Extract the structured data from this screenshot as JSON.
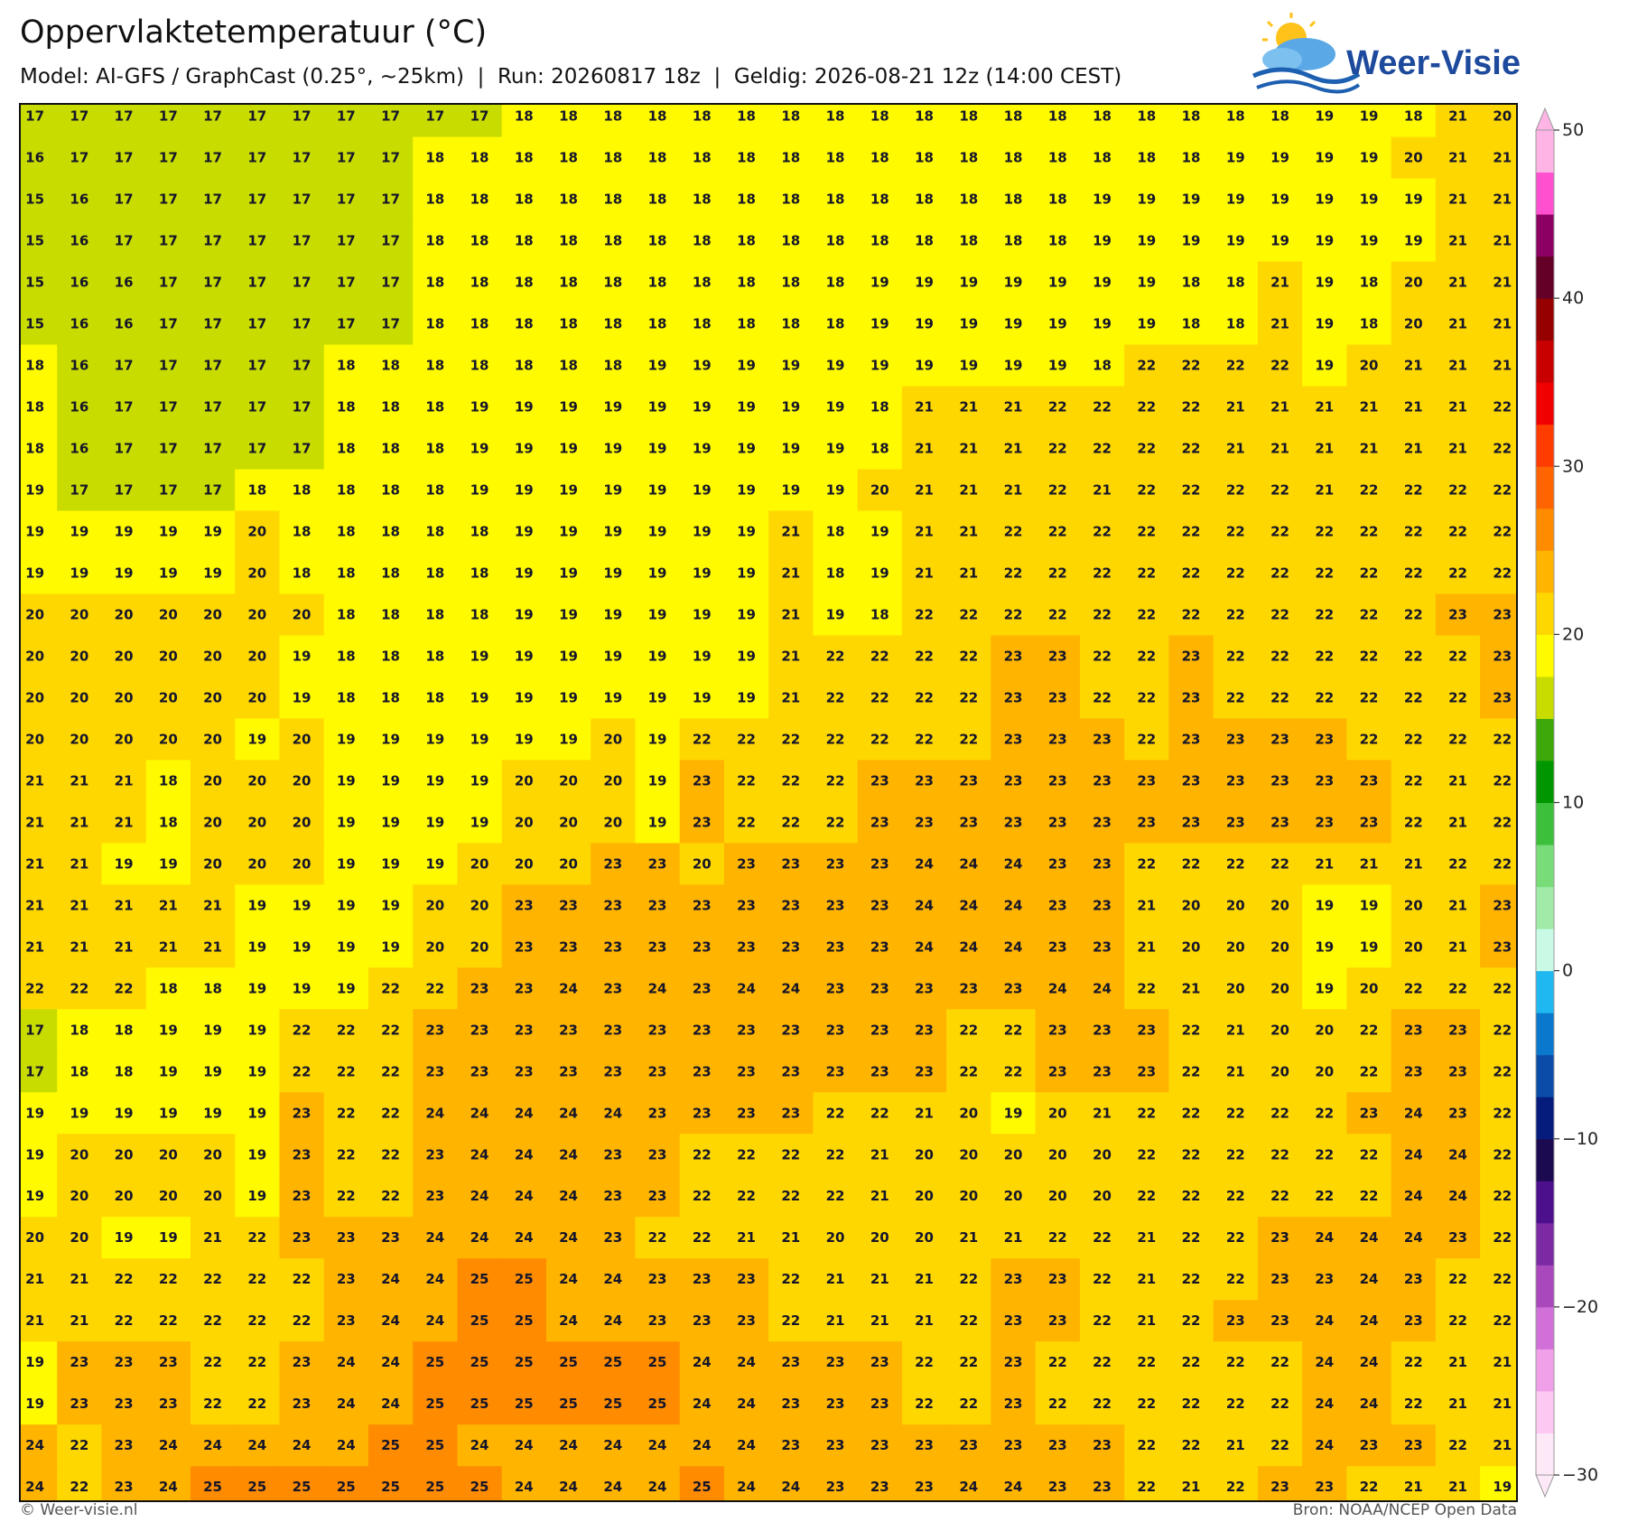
{
  "title": "Oppervlaktetemperatuur (°C)",
  "subtitle": "Model: AI-GFS / GraphCast (0.25°, ~25km)  |  Run: 20260817 18z  |  Geldig: 2026-08-21 12z (14:00 CEST)",
  "logo": "Weer-Visie",
  "footer": {
    "left": "© Weer-visie.nl",
    "right": "Bron: NOAA/NCEP Open Data"
  },
  "colorbar": {
    "lim": [
      -30,
      50
    ],
    "ticks": [
      50,
      40,
      30,
      20,
      10,
      0,
      {
        "value": -10,
        "label": "−10"
      },
      {
        "value": -20,
        "label": "−20"
      },
      {
        "value": -30,
        "label": "−30"
      }
    ],
    "colors": [
      "#fde8f8",
      "#fdc8f2",
      "#f0a0e8",
      "#d070d8",
      "#a848bc",
      "#7c2aa4",
      "#4c108c",
      "#1c0a50",
      "#061c7c",
      "#0a4ca8",
      "#0a78cc",
      "#20b8f0",
      "#c8fae6",
      "#a0eba8",
      "#78dc78",
      "#3cc03c",
      "#009600",
      "#3ca80a",
      "#c8dc00",
      "#fffa00",
      "#ffd700",
      "#ffb400",
      "#ff8c00",
      "#ff6400",
      "#ff3c00",
      "#f00000",
      "#c80000",
      "#960000",
      "#640028",
      "#8c0064",
      "#ff50d0",
      "#ffb4e6"
    ]
  },
  "grid": {
    "values": [
      [
        17,
        17,
        17,
        17,
        17,
        17,
        17,
        17,
        17,
        17,
        17,
        18,
        18,
        18,
        18,
        18,
        18,
        18,
        18,
        18,
        18,
        18,
        18,
        18,
        18,
        18,
        18,
        18,
        18,
        19,
        19,
        18,
        21,
        20
      ],
      [
        16,
        17,
        17,
        17,
        17,
        17,
        17,
        17,
        17,
        18,
        18,
        18,
        18,
        18,
        18,
        18,
        18,
        18,
        18,
        18,
        18,
        18,
        18,
        18,
        18,
        18,
        18,
        19,
        19,
        19,
        19,
        20,
        21,
        21
      ],
      [
        15,
        16,
        17,
        17,
        17,
        17,
        17,
        17,
        17,
        18,
        18,
        18,
        18,
        18,
        18,
        18,
        18,
        18,
        18,
        18,
        18,
        18,
        18,
        18,
        19,
        19,
        19,
        19,
        19,
        19,
        19,
        19,
        21,
        21
      ],
      [
        15,
        16,
        17,
        17,
        17,
        17,
        17,
        17,
        17,
        18,
        18,
        18,
        18,
        18,
        18,
        18,
        18,
        18,
        18,
        18,
        18,
        18,
        18,
        18,
        19,
        19,
        19,
        19,
        19,
        19,
        19,
        19,
        21,
        21
      ],
      [
        15,
        16,
        16,
        17,
        17,
        17,
        17,
        17,
        17,
        18,
        18,
        18,
        18,
        18,
        18,
        18,
        18,
        18,
        18,
        19,
        19,
        19,
        19,
        19,
        19,
        19,
        18,
        18,
        21,
        19,
        18,
        20,
        21,
        21
      ],
      [
        15,
        16,
        16,
        17,
        17,
        17,
        17,
        17,
        17,
        18,
        18,
        18,
        18,
        18,
        18,
        18,
        18,
        18,
        18,
        19,
        19,
        19,
        19,
        19,
        19,
        19,
        18,
        18,
        21,
        19,
        18,
        20,
        21,
        21
      ],
      [
        18,
        16,
        17,
        17,
        17,
        17,
        17,
        18,
        18,
        18,
        18,
        18,
        18,
        18,
        19,
        19,
        19,
        19,
        19,
        19,
        19,
        19,
        19,
        19,
        18,
        22,
        22,
        22,
        22,
        19,
        20,
        21,
        21,
        21
      ],
      [
        18,
        16,
        17,
        17,
        17,
        17,
        17,
        18,
        18,
        18,
        19,
        19,
        19,
        19,
        19,
        19,
        19,
        19,
        19,
        18,
        21,
        21,
        21,
        22,
        22,
        22,
        22,
        21,
        21,
        21,
        21,
        21,
        21,
        22
      ],
      [
        18,
        16,
        17,
        17,
        17,
        17,
        17,
        18,
        18,
        18,
        19,
        19,
        19,
        19,
        19,
        19,
        19,
        19,
        19,
        18,
        21,
        21,
        21,
        22,
        22,
        22,
        22,
        21,
        21,
        21,
        21,
        21,
        21,
        22
      ],
      [
        19,
        17,
        17,
        17,
        17,
        18,
        18,
        18,
        18,
        18,
        19,
        19,
        19,
        19,
        19,
        19,
        19,
        19,
        19,
        20,
        21,
        21,
        21,
        22,
        21,
        22,
        22,
        22,
        22,
        21,
        22,
        22,
        22,
        22
      ],
      [
        19,
        19,
        19,
        19,
        19,
        20,
        18,
        18,
        18,
        18,
        18,
        19,
        19,
        19,
        19,
        19,
        19,
        21,
        18,
        19,
        21,
        21,
        22,
        22,
        22,
        22,
        22,
        22,
        22,
        22,
        22,
        22,
        22,
        22
      ],
      [
        19,
        19,
        19,
        19,
        19,
        20,
        18,
        18,
        18,
        18,
        18,
        19,
        19,
        19,
        19,
        19,
        19,
        21,
        18,
        19,
        21,
        21,
        22,
        22,
        22,
        22,
        22,
        22,
        22,
        22,
        22,
        22,
        22,
        22
      ],
      [
        20,
        20,
        20,
        20,
        20,
        20,
        20,
        18,
        18,
        18,
        18,
        19,
        19,
        19,
        19,
        19,
        19,
        21,
        19,
        18,
        22,
        22,
        22,
        22,
        22,
        22,
        22,
        22,
        22,
        22,
        22,
        22,
        23,
        23
      ],
      [
        20,
        20,
        20,
        20,
        20,
        20,
        19,
        18,
        18,
        18,
        19,
        19,
        19,
        19,
        19,
        19,
        19,
        21,
        22,
        22,
        22,
        22,
        23,
        23,
        22,
        22,
        23,
        22,
        22,
        22,
        22,
        22,
        22,
        23
      ],
      [
        20,
        20,
        20,
        20,
        20,
        20,
        19,
        18,
        18,
        18,
        19,
        19,
        19,
        19,
        19,
        19,
        19,
        21,
        22,
        22,
        22,
        22,
        23,
        23,
        22,
        22,
        23,
        22,
        22,
        22,
        22,
        22,
        22,
        23
      ],
      [
        20,
        20,
        20,
        20,
        20,
        19,
        20,
        19,
        19,
        19,
        19,
        19,
        19,
        20,
        19,
        22,
        22,
        22,
        22,
        22,
        22,
        22,
        23,
        23,
        23,
        22,
        23,
        23,
        23,
        23,
        22,
        22,
        22,
        22
      ],
      [
        21,
        21,
        21,
        18,
        20,
        20,
        20,
        19,
        19,
        19,
        19,
        20,
        20,
        20,
        19,
        23,
        22,
        22,
        22,
        23,
        23,
        23,
        23,
        23,
        23,
        23,
        23,
        23,
        23,
        23,
        23,
        22,
        21,
        22
      ],
      [
        21,
        21,
        21,
        18,
        20,
        20,
        20,
        19,
        19,
        19,
        19,
        20,
        20,
        20,
        19,
        23,
        22,
        22,
        22,
        23,
        23,
        23,
        23,
        23,
        23,
        23,
        23,
        23,
        23,
        23,
        23,
        22,
        21,
        22
      ],
      [
        21,
        21,
        19,
        19,
        20,
        20,
        20,
        19,
        19,
        19,
        20,
        20,
        20,
        23,
        23,
        20,
        23,
        23,
        23,
        23,
        24,
        24,
        24,
        23,
        23,
        22,
        22,
        22,
        22,
        21,
        21,
        21,
        22,
        22
      ],
      [
        21,
        21,
        21,
        21,
        21,
        19,
        19,
        19,
        19,
        20,
        20,
        23,
        23,
        23,
        23,
        23,
        23,
        23,
        23,
        23,
        24,
        24,
        24,
        23,
        23,
        21,
        20,
        20,
        20,
        19,
        19,
        20,
        21,
        23
      ],
      [
        21,
        21,
        21,
        21,
        21,
        19,
        19,
        19,
        19,
        20,
        20,
        23,
        23,
        23,
        23,
        23,
        23,
        23,
        23,
        23,
        24,
        24,
        24,
        23,
        23,
        21,
        20,
        20,
        20,
        19,
        19,
        20,
        21,
        23
      ],
      [
        22,
        22,
        22,
        18,
        18,
        19,
        19,
        19,
        22,
        22,
        23,
        23,
        24,
        23,
        24,
        23,
        24,
        24,
        23,
        23,
        23,
        23,
        23,
        24,
        24,
        22,
        21,
        20,
        20,
        19,
        20,
        22,
        22,
        22
      ],
      [
        17,
        18,
        18,
        19,
        19,
        19,
        22,
        22,
        22,
        23,
        23,
        23,
        23,
        23,
        23,
        23,
        23,
        23,
        23,
        23,
        23,
        22,
        22,
        23,
        23,
        23,
        22,
        21,
        20,
        20,
        22,
        23,
        23,
        22
      ],
      [
        17,
        18,
        18,
        19,
        19,
        19,
        22,
        22,
        22,
        23,
        23,
        23,
        23,
        23,
        23,
        23,
        23,
        23,
        23,
        23,
        23,
        22,
        22,
        23,
        23,
        23,
        22,
        21,
        20,
        20,
        22,
        23,
        23,
        22
      ],
      [
        19,
        19,
        19,
        19,
        19,
        19,
        23,
        22,
        22,
        24,
        24,
        24,
        24,
        24,
        23,
        23,
        23,
        23,
        22,
        22,
        21,
        20,
        19,
        20,
        21,
        22,
        22,
        22,
        22,
        22,
        23,
        24,
        23,
        22
      ],
      [
        19,
        20,
        20,
        20,
        20,
        19,
        23,
        22,
        22,
        23,
        24,
        24,
        24,
        23,
        23,
        22,
        22,
        22,
        22,
        21,
        20,
        20,
        20,
        20,
        20,
        22,
        22,
        22,
        22,
        22,
        22,
        24,
        24,
        22
      ],
      [
        19,
        20,
        20,
        20,
        20,
        19,
        23,
        22,
        22,
        23,
        24,
        24,
        24,
        23,
        23,
        22,
        22,
        22,
        22,
        21,
        20,
        20,
        20,
        20,
        20,
        22,
        22,
        22,
        22,
        22,
        22,
        24,
        24,
        22
      ],
      [
        20,
        20,
        19,
        19,
        21,
        22,
        23,
        23,
        23,
        24,
        24,
        24,
        24,
        23,
        22,
        22,
        21,
        21,
        20,
        20,
        20,
        21,
        21,
        22,
        22,
        21,
        22,
        22,
        23,
        24,
        24,
        24,
        23,
        22
      ],
      [
        21,
        21,
        22,
        22,
        22,
        22,
        22,
        23,
        24,
        24,
        25,
        25,
        24,
        24,
        23,
        23,
        23,
        22,
        21,
        21,
        21,
        22,
        23,
        23,
        22,
        21,
        22,
        22,
        23,
        23,
        24,
        23,
        22,
        22
      ],
      [
        21,
        21,
        22,
        22,
        22,
        22,
        22,
        23,
        24,
        24,
        25,
        25,
        24,
        24,
        23,
        23,
        23,
        22,
        21,
        21,
        21,
        22,
        23,
        23,
        22,
        21,
        22,
        23,
        23,
        24,
        24,
        23,
        22,
        22
      ],
      [
        19,
        23,
        23,
        23,
        22,
        22,
        23,
        24,
        24,
        25,
        25,
        25,
        25,
        25,
        25,
        24,
        24,
        23,
        23,
        23,
        22,
        22,
        23,
        22,
        22,
        22,
        22,
        22,
        22,
        24,
        24,
        22,
        21,
        21
      ],
      [
        19,
        23,
        23,
        23,
        22,
        22,
        23,
        24,
        24,
        25,
        25,
        25,
        25,
        25,
        25,
        24,
        24,
        23,
        23,
        23,
        22,
        22,
        23,
        22,
        22,
        22,
        22,
        22,
        22,
        24,
        24,
        22,
        21,
        21
      ],
      [
        24,
        22,
        23,
        24,
        24,
        24,
        24,
        24,
        25,
        25,
        24,
        24,
        24,
        24,
        24,
        24,
        24,
        23,
        23,
        23,
        23,
        23,
        23,
        23,
        23,
        22,
        22,
        21,
        22,
        24,
        23,
        23,
        22,
        21
      ],
      [
        24,
        22,
        23,
        24,
        25,
        25,
        25,
        25,
        25,
        25,
        25,
        24,
        24,
        24,
        24,
        25,
        24,
        24,
        23,
        23,
        23,
        24,
        24,
        23,
        23,
        22,
        21,
        22,
        23,
        23,
        22,
        21,
        21,
        19
      ]
    ]
  }
}
